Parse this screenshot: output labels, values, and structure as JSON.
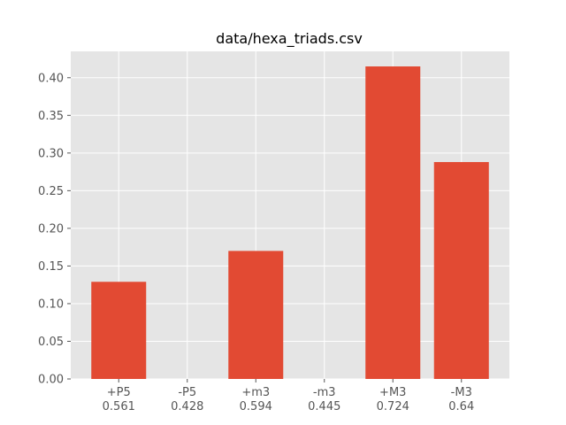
{
  "chart_data": {
    "type": "bar",
    "title": "data/hexa_triads.csv",
    "xlabel": "",
    "ylabel": "",
    "categories": [
      "+P5\n0.561",
      "-P5\n0.428",
      "+m3\n0.594",
      "-m3\n0.445",
      "+M3\n0.724",
      "-M3\n0.64"
    ],
    "values": [
      0.129,
      0.0,
      0.17,
      0.0,
      0.415,
      0.288
    ],
    "ylim": [
      0,
      0.435
    ],
    "yticks": [
      0.0,
      0.05,
      0.1,
      0.15,
      0.2,
      0.25,
      0.3,
      0.35,
      0.4
    ],
    "ytick_labels": [
      "0.00",
      "0.05",
      "0.10",
      "0.15",
      "0.20",
      "0.25",
      "0.30",
      "0.35",
      "0.40"
    ],
    "grid": true,
    "legend": "none",
    "colors": {
      "bar": "#e24a33",
      "background": "#e5e5e5",
      "grid": "#ffffff",
      "tick_text": "#555555"
    }
  }
}
